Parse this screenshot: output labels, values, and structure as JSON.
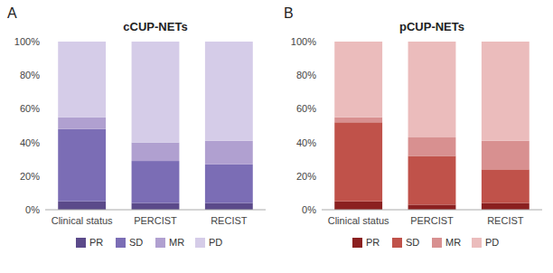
{
  "chart_data": [
    {
      "type": "bar",
      "stacked": true,
      "title": "cCUP-NETs",
      "annotations": [
        "A"
      ],
      "categories": [
        "Clinical status",
        "PERCIST",
        "RECIST"
      ],
      "series": [
        {
          "name": "PR",
          "color": "#5b4a8a",
          "values": [
            0.05,
            0.04,
            0.04
          ]
        },
        {
          "name": "SD",
          "color": "#7b6db5",
          "values": [
            0.43,
            0.25,
            0.23
          ]
        },
        {
          "name": "MR",
          "color": "#b0a0d0",
          "values": [
            0.07,
            0.11,
            0.14
          ]
        },
        {
          "name": "PD",
          "color": "#d5cce8",
          "values": [
            0.45,
            0.6,
            0.59
          ]
        }
      ],
      "ylim": [
        0,
        1.0
      ],
      "yticks": [
        {
          "value": 0.0,
          "label": "0%"
        },
        {
          "value": 0.2,
          "label": "20%"
        },
        {
          "value": 0.4,
          "label": "40%"
        },
        {
          "value": 0.6,
          "label": "60%"
        },
        {
          "value": 0.8,
          "label": "80%"
        },
        {
          "value": 1.0,
          "label": "100%"
        }
      ],
      "grid": false,
      "legend": "bottom"
    },
    {
      "type": "bar",
      "stacked": true,
      "title": "pCUP-NETs",
      "annotations": [
        "B"
      ],
      "categories": [
        "Clinical status",
        "PERCIST",
        "RECIST"
      ],
      "series": [
        {
          "name": "PR",
          "color": "#8b2020",
          "values": [
            0.05,
            0.03,
            0.04
          ]
        },
        {
          "name": "SD",
          "color": "#c0524a",
          "values": [
            0.47,
            0.29,
            0.2
          ]
        },
        {
          "name": "MR",
          "color": "#d89090",
          "values": [
            0.03,
            0.11,
            0.17
          ]
        },
        {
          "name": "PD",
          "color": "#ebbcbc",
          "values": [
            0.45,
            0.57,
            0.59
          ]
        }
      ],
      "ylim": [
        0,
        1.0
      ],
      "yticks": [
        {
          "value": 0.0,
          "label": "0%"
        },
        {
          "value": 0.2,
          "label": "20%"
        },
        {
          "value": 0.4,
          "label": "40%"
        },
        {
          "value": 0.6,
          "label": "60%"
        },
        {
          "value": 0.8,
          "label": "80%"
        },
        {
          "value": 1.0,
          "label": "100%"
        }
      ],
      "grid": false,
      "legend": "bottom"
    }
  ]
}
